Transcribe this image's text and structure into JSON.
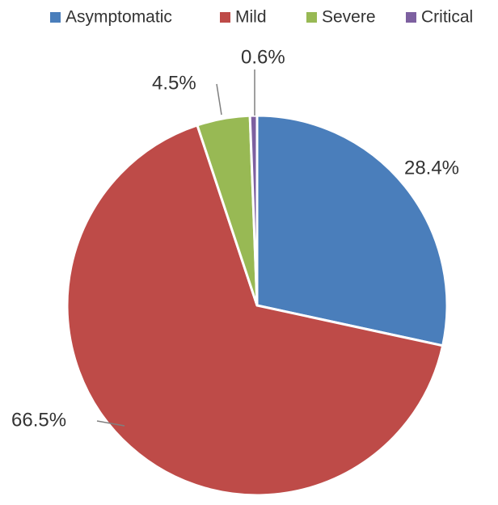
{
  "chart_data": {
    "type": "pie",
    "categories": [
      "Asymptomatic",
      "Mild",
      "Severe",
      "Critical"
    ],
    "values": [
      28.4,
      66.5,
      4.5,
      0.6
    ],
    "data_labels": [
      "28.4%",
      "66.5%",
      "4.5%",
      "0.6%"
    ],
    "colors": [
      "#4a7ebb",
      "#be4b48",
      "#98b954",
      "#7d60a0"
    ],
    "legend_placement": "top",
    "title": "",
    "start": "12 o'clock, clockwise"
  }
}
